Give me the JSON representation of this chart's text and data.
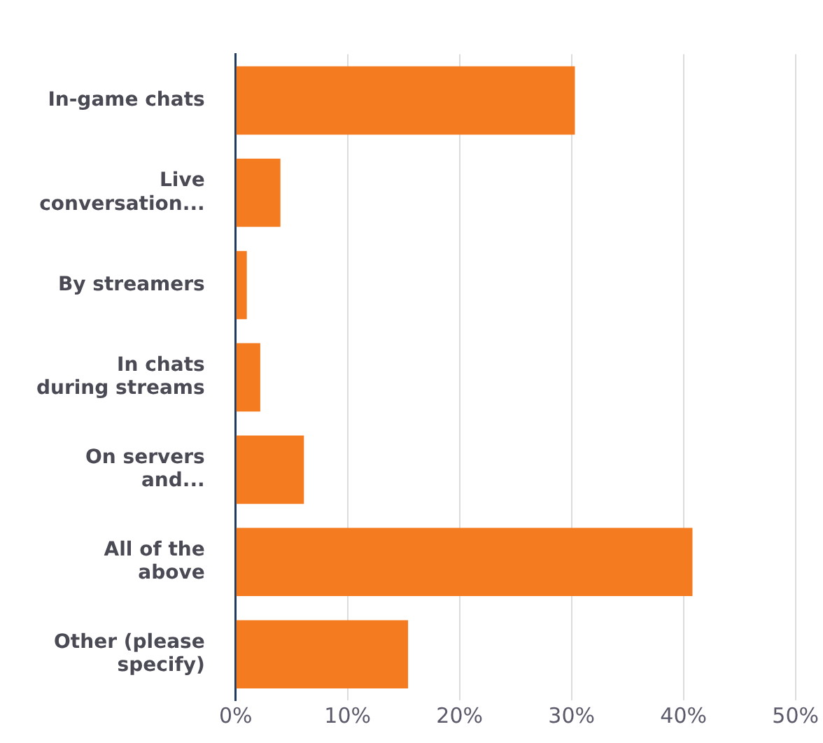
{
  "chart_data": {
    "type": "bar",
    "orientation": "horizontal",
    "categories": [
      "In-game chats",
      "Live conversation...",
      "By streamers",
      "In chats during streams",
      "On servers and...",
      "All of the above",
      "Other (please specify)"
    ],
    "values": [
      30.3,
      4.0,
      1.0,
      2.2,
      6.1,
      40.8,
      15.4
    ],
    "color": "#f47b20",
    "xlim": [
      0,
      50
    ],
    "xticks": [
      {
        "value": 0,
        "label": "0%"
      },
      {
        "value": 10,
        "label": "10%"
      },
      {
        "value": 20,
        "label": "20%"
      },
      {
        "value": 30,
        "label": "30%"
      },
      {
        "value": 40,
        "label": "40%"
      },
      {
        "value": 50,
        "label": "50%"
      }
    ],
    "grid": "x",
    "legend": false
  }
}
